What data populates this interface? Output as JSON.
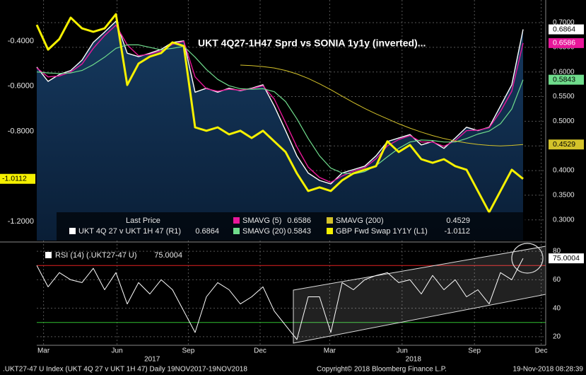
{
  "chart_data": [
    {
      "type": "line",
      "title": "UKT 4Q27-1H47 Sprd vs SONIA 1y1y (inverted)...",
      "legend_title": "Last Price",
      "xlim": [
        0,
        45
      ],
      "ylim": [
        -1.285,
        -0.218
      ],
      "yticks": [
        {
          "value": -0.4,
          "label": "-0.4000"
        },
        {
          "value": -0.6,
          "label": "-0.6000"
        },
        {
          "value": -0.8,
          "label": "-0.8000"
        },
        {
          "value": -1.2,
          "label": "-1.2000"
        }
      ],
      "y2lim": [
        0.258,
        0.746
      ],
      "y2ticks": [
        {
          "value": 0.3,
          "label": "0.3000"
        },
        {
          "value": 0.35,
          "label": "0.3500"
        },
        {
          "value": 0.4,
          "label": "0.4000"
        },
        {
          "value": 0.45,
          "label": "0.4500"
        },
        {
          "value": 0.5,
          "label": "0.5000"
        },
        {
          "value": 0.55,
          "label": "0.5500"
        },
        {
          "value": 0.6,
          "label": "0.6000"
        },
        {
          "value": 0.65,
          "label": "0.6500"
        },
        {
          "value": 0.7,
          "label": "0.7000"
        }
      ],
      "grid": true,
      "series": [
        {
          "name": "UKT 4Q 27 v UKT 1H 47  (R1)",
          "color": "#ffffff",
          "axis": "y2",
          "values": [
            0.61,
            0.581,
            0.595,
            0.603,
            0.624,
            0.66,
            0.681,
            0.703,
            0.638,
            0.631,
            0.638,
            0.646,
            0.66,
            0.663,
            0.559,
            0.567,
            0.559,
            0.567,
            0.562,
            0.567,
            0.574,
            0.531,
            0.481,
            0.43,
            0.395,
            0.38,
            0.373,
            0.395,
            0.402,
            0.409,
            0.43,
            0.459,
            0.466,
            0.473,
            0.452,
            0.459,
            0.445,
            0.466,
            0.488,
            0.481,
            0.488,
            0.531,
            0.574,
            0.6864
          ]
        },
        {
          "name": "SMAVG (5)",
          "color": "#e8179a",
          "axis": "y2",
          "values": [
            0.608,
            0.59,
            0.592,
            0.6,
            0.616,
            0.648,
            0.674,
            0.695,
            0.655,
            0.633,
            0.636,
            0.643,
            0.656,
            0.662,
            0.59,
            0.566,
            0.561,
            0.565,
            0.563,
            0.566,
            0.572,
            0.545,
            0.497,
            0.448,
            0.407,
            0.386,
            0.376,
            0.389,
            0.399,
            0.406,
            0.424,
            0.45,
            0.463,
            0.471,
            0.458,
            0.458,
            0.449,
            0.461,
            0.481,
            0.482,
            0.487,
            0.52,
            0.561,
            0.6586
          ]
        },
        {
          "name": "SMAVG (20)",
          "color": "#6fdc8c",
          "axis": "y2",
          "values": [
            0.6,
            0.598,
            0.597,
            0.598,
            0.603,
            0.615,
            0.63,
            0.648,
            0.655,
            0.655,
            0.65,
            0.645,
            0.648,
            0.652,
            0.63,
            0.605,
            0.585,
            0.572,
            0.566,
            0.565,
            0.566,
            0.56,
            0.54,
            0.505,
            0.465,
            0.43,
            0.405,
            0.395,
            0.393,
            0.398,
            0.41,
            0.428,
            0.445,
            0.458,
            0.462,
            0.461,
            0.458,
            0.458,
            0.465,
            0.474,
            0.48,
            0.495,
            0.525,
            0.5843
          ]
        },
        {
          "name": "SMAVG (200)",
          "color": "#d4c22a",
          "axis": "y2",
          "values": [
            null,
            null,
            null,
            null,
            null,
            null,
            null,
            null,
            null,
            null,
            null,
            null,
            null,
            null,
            null,
            null,
            null,
            null,
            0.614,
            0.613,
            0.611,
            0.608,
            0.603,
            0.596,
            0.587,
            0.576,
            0.564,
            0.551,
            0.538,
            0.526,
            0.515,
            0.505,
            0.495,
            0.486,
            0.478,
            0.471,
            0.465,
            0.46,
            0.456,
            0.453,
            0.451,
            0.45,
            0.451,
            0.4529
          ]
        },
        {
          "name": "GBP Fwd Swap 1Y1Y  (L1)",
          "color": "#f5f000",
          "axis": "y",
          "values": [
            -0.328,
            -0.438,
            -0.391,
            -0.296,
            -0.344,
            -0.359,
            -0.344,
            -0.281,
            -0.595,
            -0.5,
            -0.469,
            -0.453,
            -0.406,
            -0.422,
            -0.783,
            -0.798,
            -0.783,
            -0.814,
            -0.798,
            -0.83,
            -0.798,
            -0.845,
            -0.892,
            -0.987,
            -1.065,
            -1.049,
            -1.065,
            -1.018,
            -0.987,
            -0.971,
            -0.955,
            -0.845,
            -0.892,
            -0.861,
            -0.924,
            -0.94,
            -0.924,
            -0.955,
            -0.971,
            -1.065,
            -1.159,
            -1.065,
            -0.971,
            -1.0112
          ]
        }
      ]
    },
    {
      "type": "line",
      "xlim": [
        0,
        45
      ],
      "xticks": [
        {
          "value": 0.6,
          "label": "Mar"
        },
        {
          "value": 7.1,
          "label": "Jun"
        },
        {
          "value": 13.4,
          "label": "Sep"
        },
        {
          "value": 19.75,
          "label": "Dec"
        },
        {
          "value": 25.9,
          "label": "Mar"
        },
        {
          "value": 32.3,
          "label": "Jun"
        },
        {
          "value": 38.7,
          "label": "Sep"
        },
        {
          "value": 44.6,
          "label": "Dec"
        }
      ],
      "xgroups": [
        {
          "value": 10.2,
          "label": "2017"
        },
        {
          "value": 33.3,
          "label": "2018"
        }
      ],
      "ylim": [
        14,
        85
      ],
      "yticks": [
        20,
        40,
        60,
        80
      ],
      "grid": true,
      "ref_lines": [
        {
          "value": 70,
          "color": "#e02020"
        },
        {
          "value": 30,
          "color": "#30c030"
        }
      ],
      "series": [
        {
          "name": "RSI (14)  (.UKT27-47 U)",
          "color": "#ffffff",
          "values": [
            70,
            55,
            65,
            60,
            58,
            68,
            53,
            65,
            43,
            58,
            50,
            60,
            53,
            38,
            23,
            48,
            58,
            53,
            43,
            48,
            55,
            38,
            28,
            18,
            48,
            48,
            23,
            58,
            53,
            60,
            63,
            65,
            58,
            60,
            50,
            63,
            53,
            60,
            48,
            53,
            43,
            65,
            60,
            75.0004
          ]
        }
      ]
    }
  ],
  "footer": {
    "left": ".UKT27-47 U Index (UKT 4Q 27 v UKT 1H 47)  Daily 19NOV2017-19NOV2018",
    "center": "Copyright© 2018 Bloomberg Finance L.P.",
    "right": "19-Nov-2018 08:28:39"
  }
}
